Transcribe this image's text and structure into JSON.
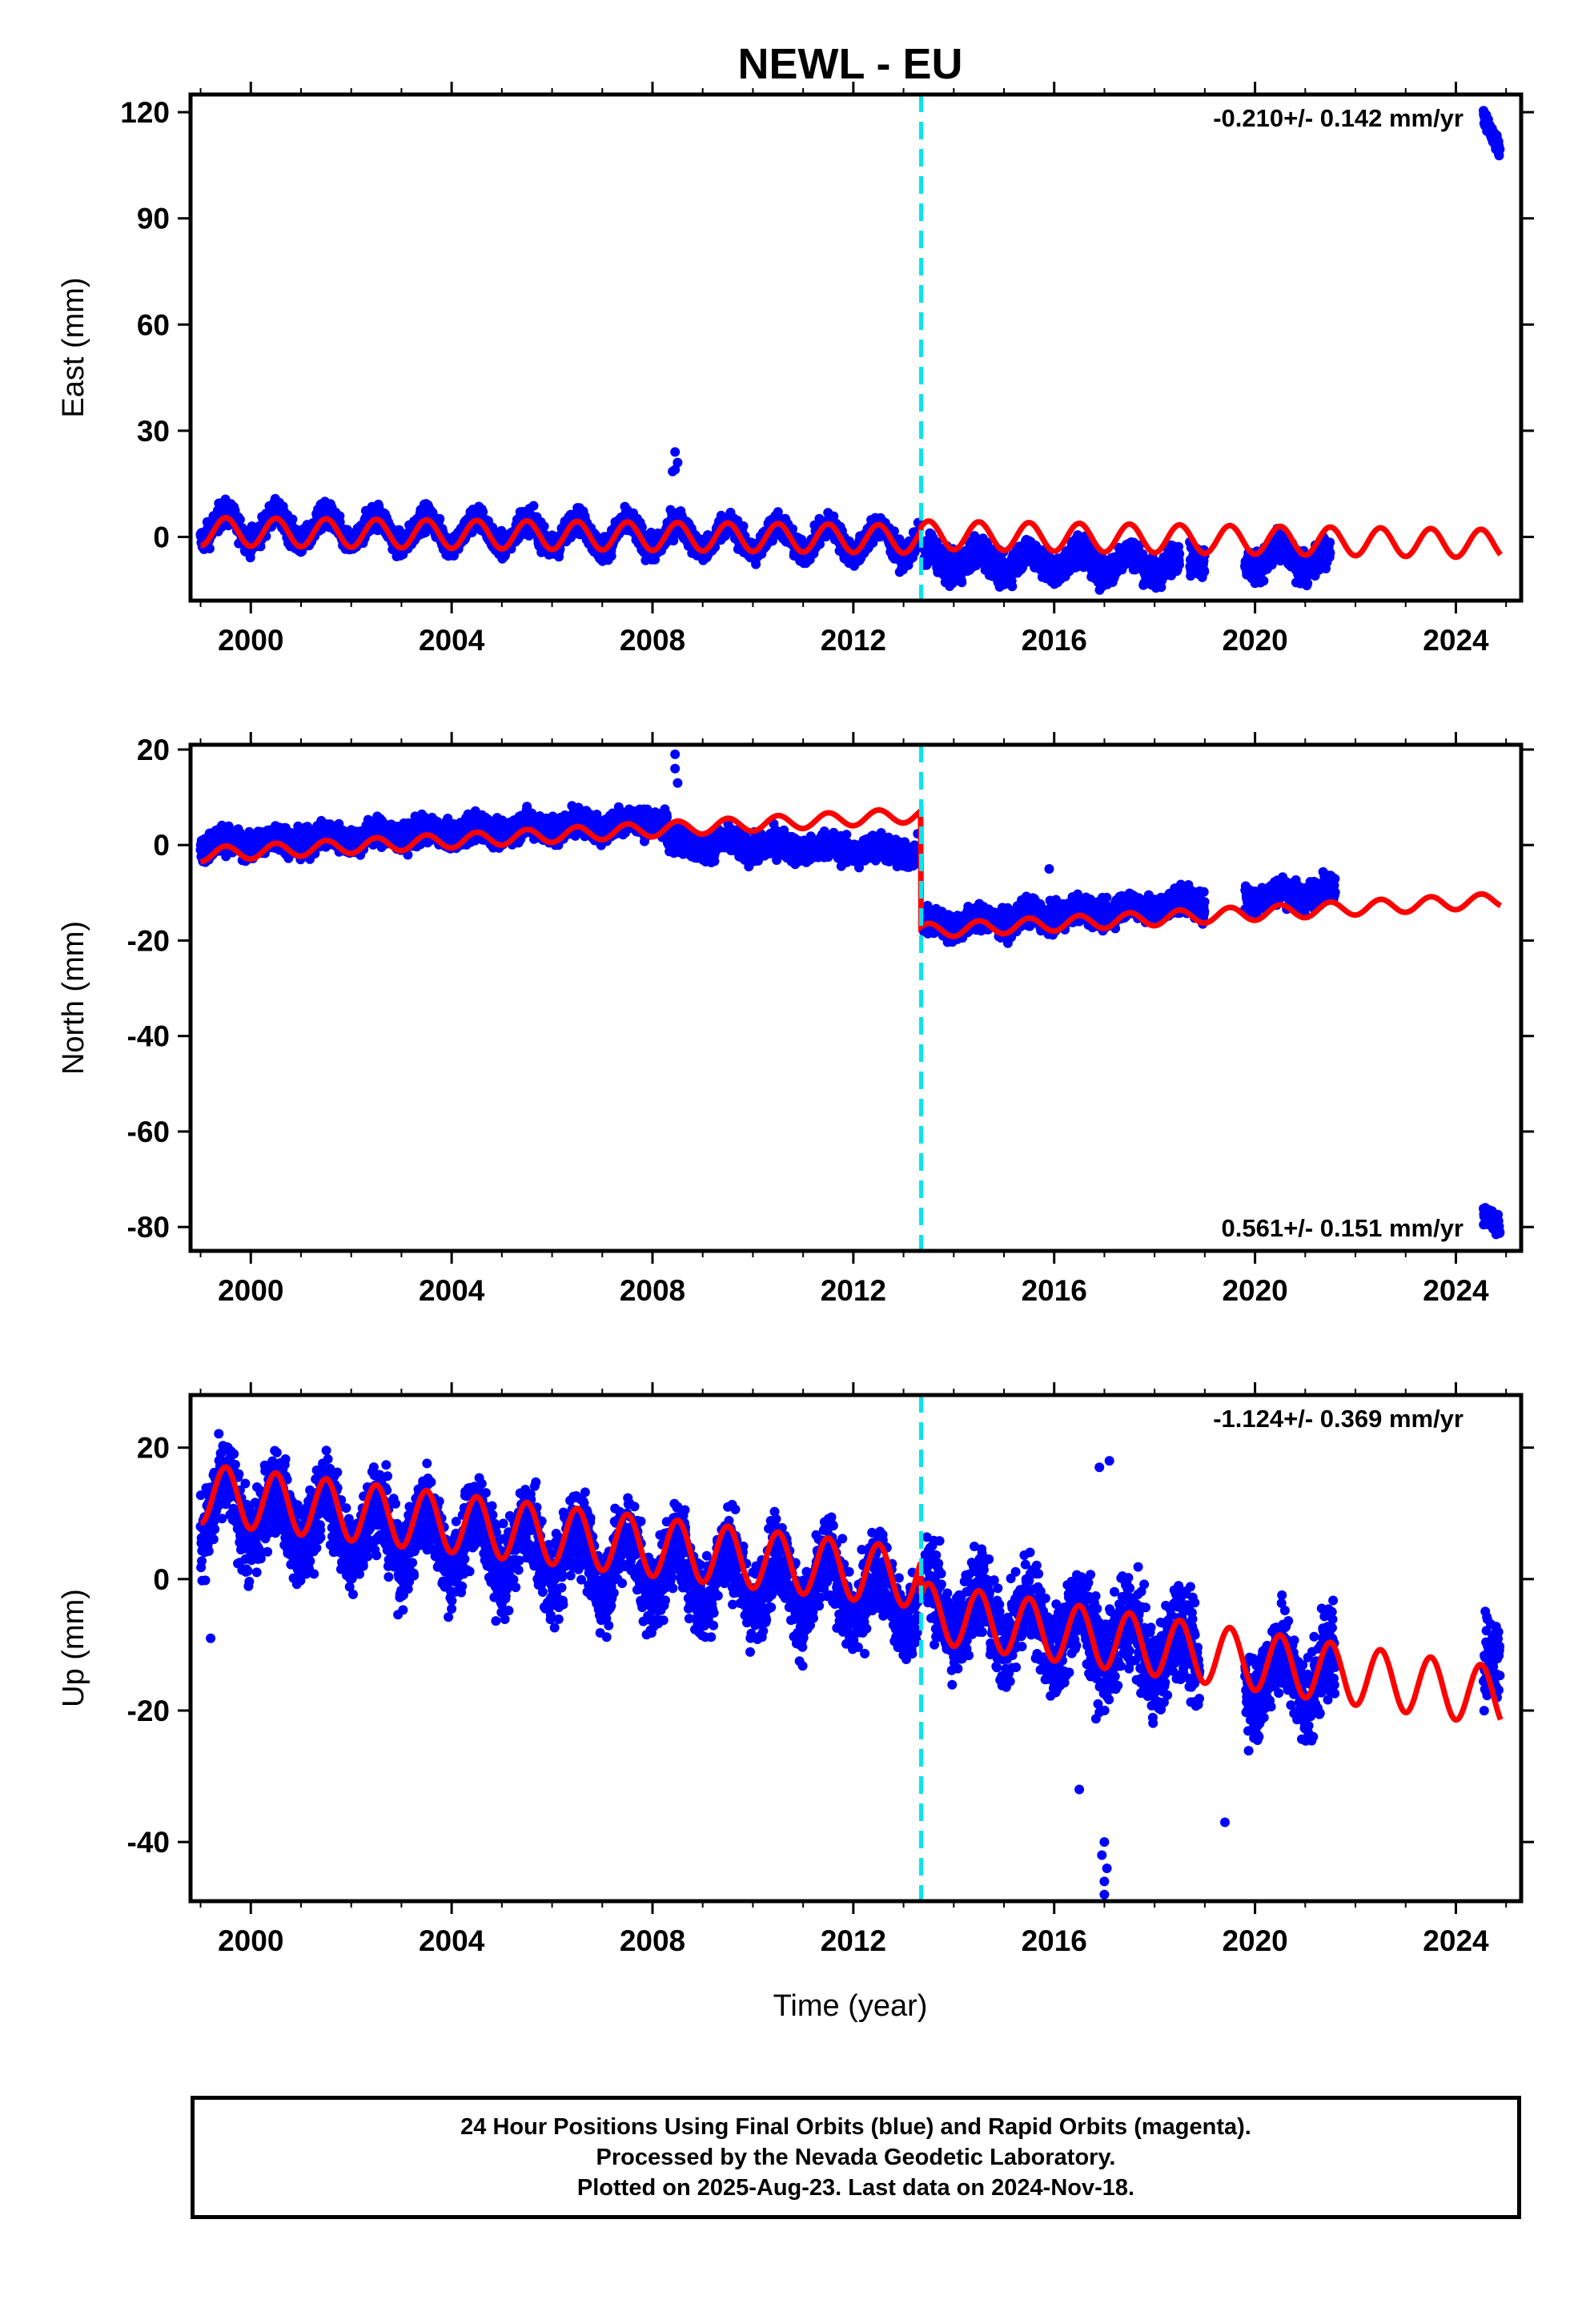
{
  "title": "NEWL - EU",
  "colors": {
    "final": "#0000ff",
    "model": "#ff0000",
    "offset": "#00e5ee",
    "axis": "#000000"
  },
  "x_axis": {
    "label": "Time (year)",
    "ticks": [
      "2000",
      "2004",
      "2008",
      "2012",
      "2016",
      "2020",
      "2024"
    ]
  },
  "footer": {
    "line1": "24 Hour Positions Using Final Orbits (blue) and Rapid Orbits (magenta).",
    "line2": "Processed by the Nevada Geodetic Laboratory.",
    "line3": "Plotted on 2025-Aug-23. Last data on 2024-Nov-18."
  },
  "chart_data": [
    {
      "type": "scatter",
      "component": "east",
      "ylabel": "East (mm)",
      "ylim": [
        -18,
        125
      ],
      "yticks": [
        "0",
        "30",
        "60",
        "90",
        "120"
      ],
      "xlim": [
        1998.8,
        2025.3
      ],
      "rate": "-0.210+/- 0.142 mm/yr",
      "rate_position": "top-right",
      "offset_epoch": 2013.35,
      "series": [
        {
          "kind": "model",
          "segments": [
            {
              "start": 1999.0,
              "end": 2013.35,
              "y0": 1.5,
              "slope": -0.15,
              "amp": 4.0
            },
            {
              "start": 2013.35,
              "end": 2024.9,
              "y0": 0.5,
              "slope": -0.21,
              "amp": 4.0
            }
          ]
        },
        {
          "kind": "positions",
          "segments": [
            {
              "start": 1999.0,
              "end": 2013.3,
              "y0": 3.0,
              "slope": -0.3,
              "amp": 4.0,
              "spread": 2.5
            },
            {
              "start": 2013.4,
              "end": 2018.5,
              "y0": -6.5,
              "slope": -0.2,
              "amp": 3.0,
              "spread": 3.0
            },
            {
              "start": 2018.7,
              "end": 2019.0,
              "y0": -6.5,
              "slope": 0,
              "amp": 0,
              "spread": 3.0
            },
            {
              "start": 2019.8,
              "end": 2021.5,
              "y0": -6.0,
              "slope": -0.2,
              "amp": 3.0,
              "spread": 3.0
            },
            {
              "start": 2024.55,
              "end": 2024.88,
              "y0": 119.0,
              "slope": -30.0,
              "amp": 0,
              "spread": 1.5
            }
          ],
          "outliers": [
            [
              2008.45,
              24.0
            ],
            [
              2008.45,
              19.0
            ],
            [
              2008.5,
              21.0
            ],
            [
              2008.4,
              18.5
            ]
          ]
        }
      ]
    },
    {
      "type": "scatter",
      "component": "north",
      "ylabel": "North (mm)",
      "ylim": [
        -85,
        21
      ],
      "yticks": [
        "-80",
        "-60",
        "-40",
        "-20",
        "0",
        "20"
      ],
      "xlim": [
        1998.8,
        2025.3
      ],
      "rate": "0.561+/- 0.151 mm/yr",
      "rate_position": "bottom-right",
      "offset_epoch": 2013.35,
      "series": [
        {
          "kind": "model",
          "segments": [
            {
              "start": 1999.0,
              "end": 2013.35,
              "y0": -2.0,
              "slope": 0.58,
              "amp": 1.5
            },
            {
              "start": 2013.35,
              "end": 2024.9,
              "y0": -18.0,
              "slope": 0.56,
              "amp": 1.5
            }
          ]
        },
        {
          "kind": "positions",
          "segments": [
            {
              "start": 1999.0,
              "end": 2008.3,
              "y0": 0.0,
              "slope": 0.55,
              "amp": 1.0,
              "spread": 2.0
            },
            {
              "start": 2008.3,
              "end": 2013.3,
              "y0": 0.5,
              "slope": -0.4,
              "amp": 1.0,
              "spread": 2.0
            },
            {
              "start": 2013.4,
              "end": 2019.0,
              "y0": -17.0,
              "slope": 0.9,
              "amp": 1.0,
              "spread": 2.0
            },
            {
              "start": 2019.8,
              "end": 2021.6,
              "y0": -11.0,
              "slope": 0.9,
              "amp": 1.0,
              "spread": 2.0
            },
            {
              "start": 2024.55,
              "end": 2024.88,
              "y0": -77.0,
              "slope": -10.0,
              "amp": 0,
              "spread": 1.5
            }
          ],
          "outliers": [
            [
              2008.45,
              19.0
            ],
            [
              2008.45,
              16.0
            ],
            [
              2008.5,
              13.0
            ],
            [
              2015.9,
              -5.0
            ]
          ]
        }
      ]
    },
    {
      "type": "scatter",
      "component": "up",
      "ylabel": "Up (mm)",
      "ylim": [
        -49,
        28
      ],
      "yticks": [
        "-40",
        "-20",
        "0",
        "20"
      ],
      "xlim": [
        1998.8,
        2025.3
      ],
      "rate": "-1.124+/- 0.369 mm/yr",
      "rate_position": "top-right",
      "offset_epoch": 2013.35,
      "series": [
        {
          "kind": "model",
          "segments": [
            {
              "start": 1999.0,
              "end": 2013.35,
              "y0": 13.0,
              "slope": -0.9,
              "amp": 4.5
            },
            {
              "start": 2013.35,
              "end": 2024.9,
              "y0": -5.0,
              "slope": -1.12,
              "amp": 4.5
            }
          ]
        },
        {
          "kind": "positions",
          "segments": [
            {
              "start": 1999.0,
              "end": 2013.3,
              "y0": 11.0,
              "slope": -1.0,
              "amp": 4.5,
              "spread": 4.5
            },
            {
              "start": 2013.4,
              "end": 2018.9,
              "y0": -4.0,
              "slope": -1.4,
              "amp": 4.0,
              "spread": 5.0
            },
            {
              "start": 2019.8,
              "end": 2021.6,
              "y0": -14.0,
              "slope": -0.6,
              "amp": 4.0,
              "spread": 5.0
            },
            {
              "start": 2024.55,
              "end": 2024.88,
              "y0": -12.0,
              "slope": 0,
              "amp": 0,
              "spread": 4.5
            }
          ],
          "outliers": [
            [
              2017.0,
              -48.0
            ],
            [
              2017.0,
              -46.0
            ],
            [
              2017.05,
              -44.0
            ],
            [
              2016.95,
              -42.0
            ],
            [
              2017.0,
              -40.0
            ],
            [
              2016.5,
              -32.0
            ],
            [
              2019.4,
              -37.0
            ],
            [
              2017.1,
              18.0
            ],
            [
              2016.9,
              17.0
            ],
            [
              1999.2,
              -9.0
            ]
          ]
        }
      ]
    }
  ]
}
